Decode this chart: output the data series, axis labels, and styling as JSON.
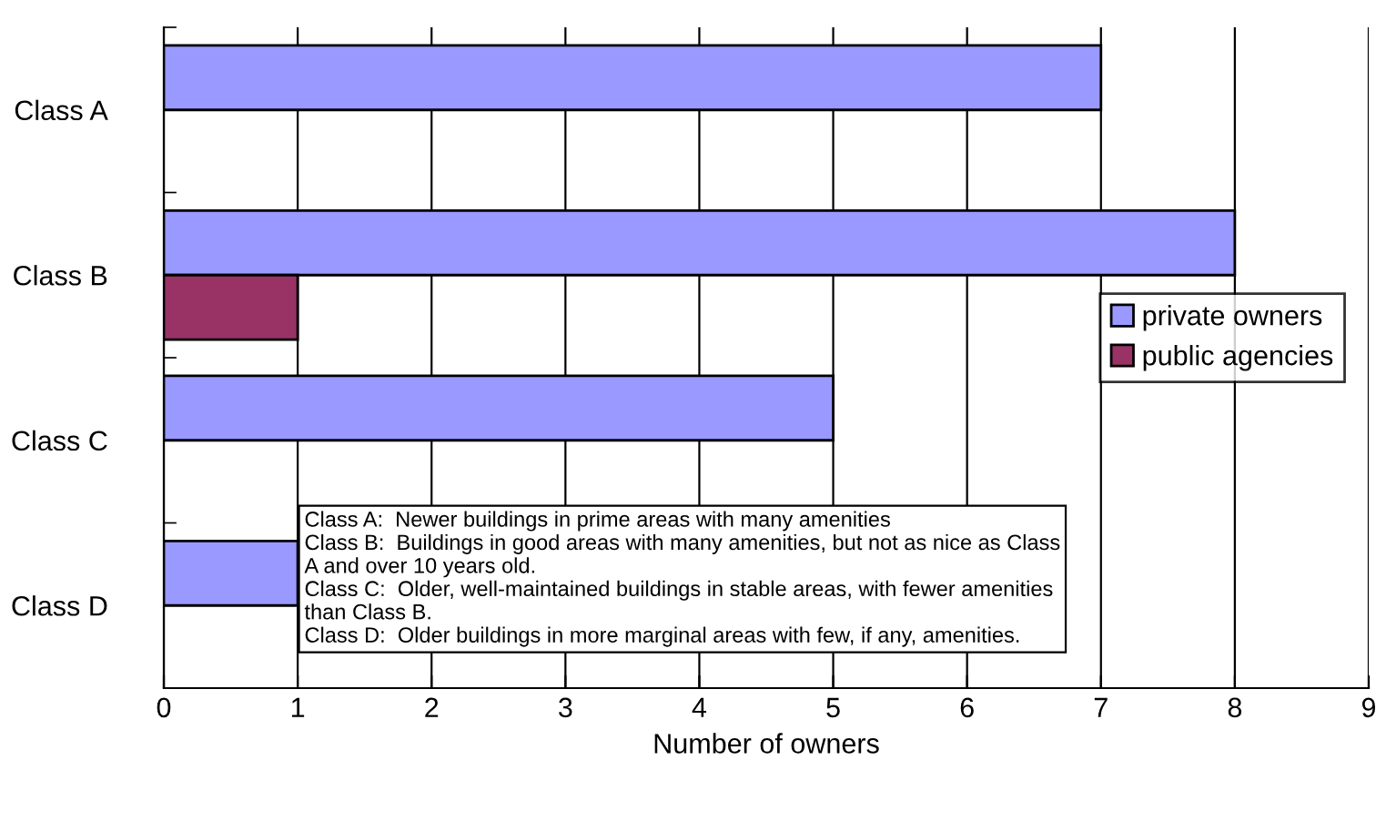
{
  "chart_data": {
    "type": "bar",
    "orientation": "horizontal",
    "xlabel": "Number of owners",
    "categories": [
      "Class A",
      "Class B",
      "Class C",
      "Class D"
    ],
    "series": [
      {
        "name": "private owners",
        "color": "#9999ff",
        "values": [
          7,
          8,
          5,
          1
        ]
      },
      {
        "name": "public agencies",
        "color": "#993366",
        "values": [
          null,
          1,
          null,
          null
        ]
      }
    ],
    "xlim": [
      0,
      9
    ],
    "xticks": [
      0,
      1,
      2,
      3,
      4,
      5,
      6,
      7,
      8,
      9
    ],
    "grid": "x",
    "legend": "right",
    "annotations": [
      "Class A:  Newer buildings in prime areas with many amenities",
      "Class B:  Buildings in good areas with many amenities, but not as nice as Class\nA and over 10 years old.",
      "Class C:  Older, well-maintained buildings in stable areas, with fewer amenities\nthan Class B.",
      "Class D:  Older buildings in more marginal areas with few, if any, amenities."
    ]
  }
}
